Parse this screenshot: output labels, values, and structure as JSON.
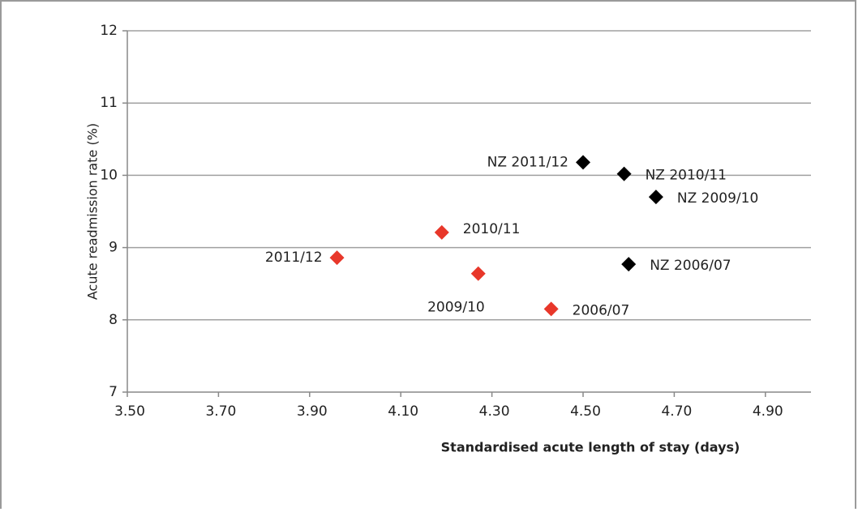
{
  "chart_data": {
    "type": "scatter",
    "x_label": "Standardised  acute length of stay (days)",
    "y_label": "Acute readmission rate (%)",
    "xlim": [
      3.5,
      5.0
    ],
    "xticks": [
      {
        "value": 3.5,
        "label": "3.50"
      },
      {
        "value": 3.7,
        "label": "3.70"
      },
      {
        "value": 3.9,
        "label": "3.90"
      },
      {
        "value": 4.1,
        "label": "4.10"
      },
      {
        "value": 4.3,
        "label": "4.30"
      },
      {
        "value": 4.5,
        "label": "4.50"
      },
      {
        "value": 4.7,
        "label": "4.70"
      },
      {
        "value": 4.9,
        "label": "4.90"
      }
    ],
    "ylim": [
      7,
      12
    ],
    "yticks": [
      7,
      8,
      9,
      10,
      11,
      12
    ],
    "grid": true,
    "series": [
      {
        "color": "#e8372a",
        "x": [
          3.96,
          4.19,
          4.27,
          4.43
        ],
        "values": [
          8.86,
          9.21,
          8.64,
          8.15
        ],
        "labels": [
          "2011/12",
          "2010/11",
          "2009/10",
          "2006/07"
        ]
      },
      {
        "color": "#000000",
        "x": [
          4.5,
          4.59,
          4.66,
          4.6
        ],
        "values": [
          10.18,
          10.02,
          9.7,
          8.77
        ],
        "labels": [
          "NZ 2011/12",
          "NZ 2010/11",
          "NZ 2009/10",
          "NZ 2006/07"
        ]
      }
    ]
  }
}
